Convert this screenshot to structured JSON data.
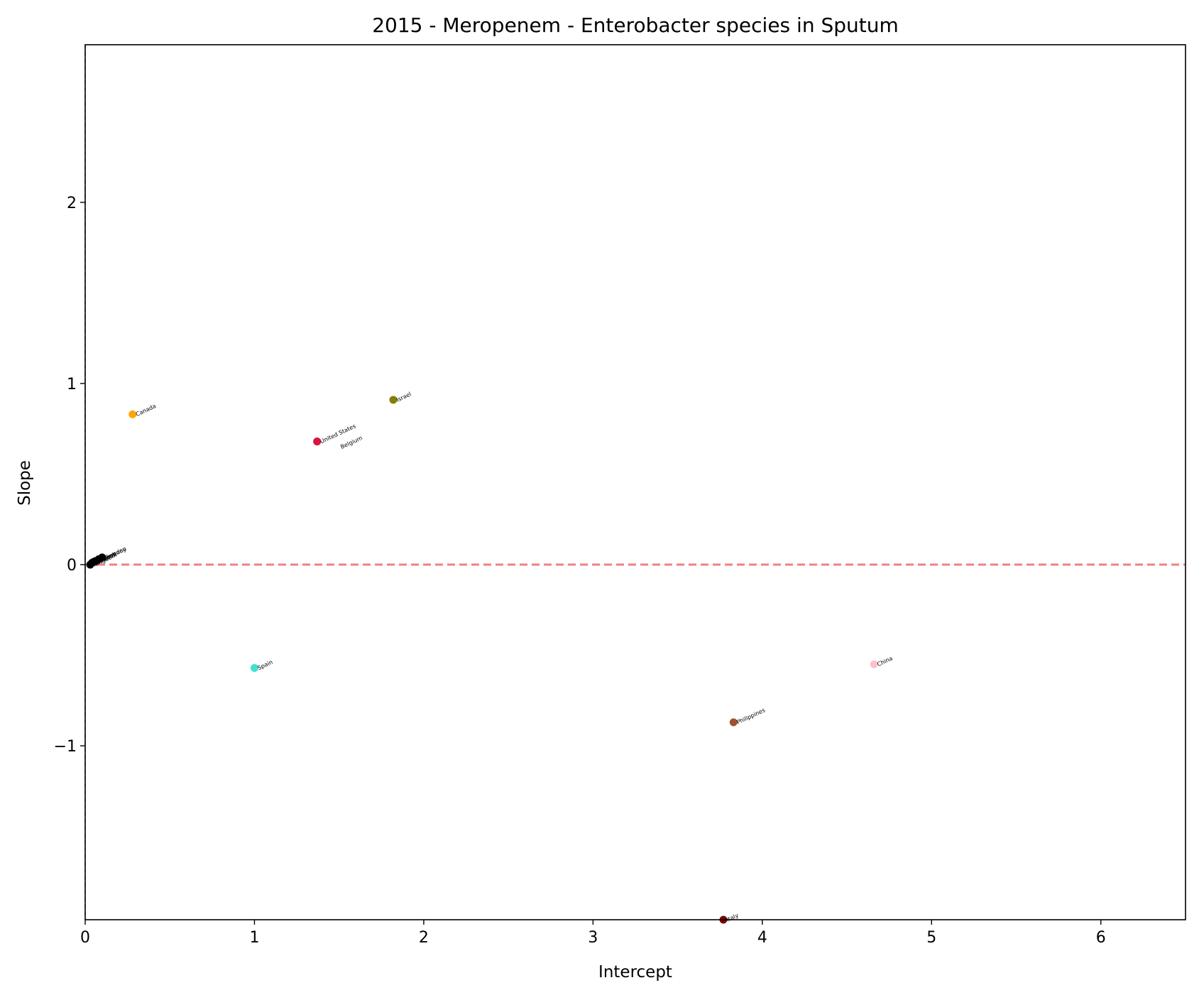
{
  "chart_data": {
    "type": "scatter",
    "title": "2015 - Meropenem - Enterobacter species in Sputum",
    "xlabel": "Intercept",
    "ylabel": "Slope",
    "xlim": [
      0,
      6.5
    ],
    "ylim": [
      -1.96,
      2.87
    ],
    "xticks": [
      0,
      1,
      2,
      3,
      4,
      5,
      6
    ],
    "yticks": [
      -1,
      0,
      1,
      2
    ],
    "ytick_labels": [
      "−1",
      "0",
      "1",
      "2"
    ],
    "grid": false,
    "reference_lines": [
      {
        "orientation": "horizontal",
        "value": 0,
        "style": "dashed",
        "color": "#f08080"
      },
      {
        "orientation": "vertical",
        "value": 0,
        "style": "dashed",
        "color": "#2e8b57"
      }
    ],
    "points": [
      {
        "label": "Canada",
        "x": 0.28,
        "y": 0.83,
        "color": "#ffa500"
      },
      {
        "label": "United States",
        "x": 1.37,
        "y": 0.68,
        "color": "#dc143c"
      },
      {
        "label": "Belgium",
        "x": 1.37,
        "y": 0.68,
        "color": "#dc143c",
        "label_dx": 0.12,
        "label_dy": -0.03
      },
      {
        "label": "Israel",
        "x": 1.82,
        "y": 0.91,
        "color": "#808000"
      },
      {
        "label": "Spain",
        "x": 1.0,
        "y": -0.57,
        "color": "#40e0d0"
      },
      {
        "label": "China",
        "x": 4.66,
        "y": -0.55,
        "color": "#ffc0cb"
      },
      {
        "label": "Philippines",
        "x": 3.83,
        "y": -0.87,
        "color": "#a0522d"
      },
      {
        "label": "Italy",
        "x": 3.77,
        "y": -1.96,
        "color": "#800000"
      },
      {
        "label": "Sweden",
        "x": 0.1,
        "y": 0.04,
        "color": "#000000"
      },
      {
        "label": "Germany",
        "x": 0.08,
        "y": 0.03,
        "color": "#000000"
      },
      {
        "label": "France",
        "x": 0.06,
        "y": 0.02,
        "color": "#000000"
      },
      {
        "label": "Poland",
        "x": 0.05,
        "y": 0.015,
        "color": "#000000"
      },
      {
        "label": "Japan",
        "x": 0.04,
        "y": 0.01,
        "color": "#000000"
      },
      {
        "label": "Kingdom",
        "x": 0.03,
        "y": 0.0,
        "color": "#000000"
      }
    ]
  }
}
